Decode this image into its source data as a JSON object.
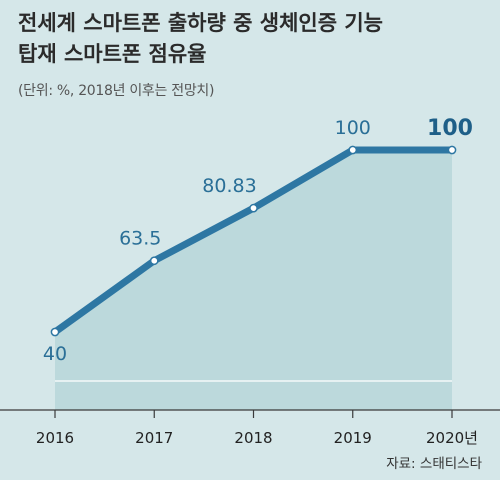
{
  "title_line1": "전세계 스마트폰 출하량 중 생체인증 기능",
  "title_line2": "탑재 스마트폰 점유율",
  "subtitle": "(단위: %, 2018년 이후는 전망치)",
  "source": "자료: 스태티스타",
  "colors": {
    "line": "#2e77a3",
    "area": "#bcd9dc",
    "background": "#d5e7e9",
    "label": "#2a6f97"
  },
  "chart_data": {
    "type": "area",
    "title": "전세계 스마트폰 출하량 중 생체인증 기능 탑재 스마트폰 점유율",
    "subtitle": "(단위: %, 2018년 이후는 전망치)",
    "categories": [
      "2016",
      "2017",
      "2018",
      "2019",
      "2020년"
    ],
    "values": [
      40,
      63.5,
      80.83,
      100,
      100
    ],
    "value_labels": [
      "40",
      "63.5",
      "80.83",
      "100",
      "100"
    ],
    "ylim": [
      30,
      100
    ],
    "grid": false,
    "legend": "none"
  }
}
